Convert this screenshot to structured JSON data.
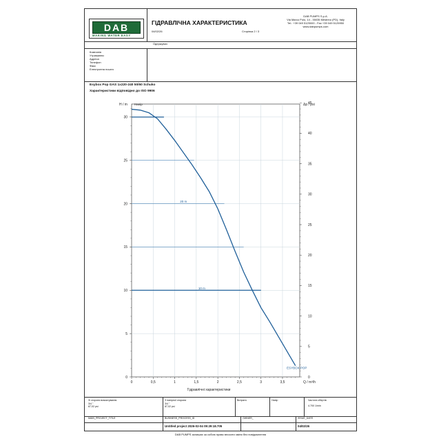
{
  "header": {
    "logo_text": "DAB",
    "logo_tagline": "MAKING WATER EASY",
    "title": "ГІДРАВЛІЧНА ХАРАКТЕРИСТИКА",
    "date": "04/02/26",
    "page": "Сторінка 2 / 3",
    "company_lines": [
      "DAB PUMPS S.p.A.",
      "Via Marco Polo, 14 - 35035 Mestrino (PD), Italy",
      "Tel.: +39 049 5125000 - Fax +39 049 5125950",
      "www.dabpumps.com"
    ]
  },
  "customer": {
    "recipient_label": "Одержувач",
    "fields": [
      "Компанія",
      "Утримання:",
      "Адреса",
      "Телефон",
      "Факс",
      "Електронна пошта"
    ]
  },
  "product": {
    "name": "Esybox Pop GAS 1x220-240 50/60 Schuko",
    "standard": "Характеристики відповідно до ISO 9906"
  },
  "chart_data": {
    "type": "line",
    "ylabel_left": "H / m",
    "ylabel_left_note": "Напір",
    "ylabel_right": "Δp / psi",
    "xlabel": "Q / m³/h",
    "xlabel_bottom": "Гідравлічні характеристики",
    "x_ticks": [
      "0",
      "0,5",
      "1",
      "1,5",
      "2",
      "2,5",
      "3",
      "3,5"
    ],
    "xlim": [
      0,
      3.9
    ],
    "y_ticks": [
      0,
      5,
      10,
      15,
      20,
      25,
      30
    ],
    "ylim": [
      0,
      31.5
    ],
    "y_right_ticks": [
      0,
      5,
      10,
      15,
      20,
      25,
      30,
      35,
      40,
      45
    ],
    "y_right_lim": [
      0,
      44.8
    ],
    "grid": true,
    "series": [
      {
        "name": "ESYBOX POP",
        "x": [
          0,
          0.2,
          0.4,
          0.6,
          0.8,
          1.0,
          1.2,
          1.4,
          1.6,
          1.8,
          2.0,
          2.2,
          2.4,
          2.6,
          2.8,
          3.0,
          3.2,
          3.4,
          3.6,
          3.8
        ],
        "y": [
          30.9,
          30.8,
          30.5,
          29.8,
          28.6,
          27.3,
          25.9,
          24.5,
          23.0,
          21.4,
          19.4,
          17.0,
          14.5,
          12.1,
          10.0,
          8.0,
          6.4,
          4.7,
          3.0,
          1.3
        ]
      }
    ],
    "operating_lines": [
      {
        "y": 30,
        "x_end": 0.75
      },
      {
        "y": 25,
        "x_end": 1.45
      },
      {
        "label": "20 m",
        "y": 20,
        "x_end": 2.15
      },
      {
        "y": 15,
        "x_end": 2.6
      },
      {
        "label": "10 m",
        "y": 10,
        "x_end": 3.0
      }
    ]
  },
  "footer": {
    "row1": [
      {
        "label": "Зі сторони всмоктування",
        "value1": "3/4 \"",
        "value2": "87,02 psi"
      },
      {
        "label": "З напірної сторони",
        "value1": "3/4 \"",
        "value2": "87,02 psi"
      },
      {
        "label": "Витрата",
        "value1": "",
        "value2": ""
      },
      {
        "label": "Напір",
        "value1": "",
        "value2": ""
      },
      {
        "label": "Частота обертів",
        "value1": "4.700 1/min",
        "value2": ""
      }
    ],
    "row2": [
      {
        "label": "MAIN_PROJECT_TITLE",
        "value": ""
      },
      {
        "label": "BUSINESS_PROCESS_ID",
        "value": "Untitled project 2026-02-04 09:29:18.705"
      },
      {
        "label": "OWNER_",
        "value": ""
      },
      {
        "label": "ISSUE_DATE",
        "value": "04/02/26"
      }
    ],
    "disclaimer": "DAB PUMPS залишає за собою право вносити зміни без повідомлення"
  }
}
